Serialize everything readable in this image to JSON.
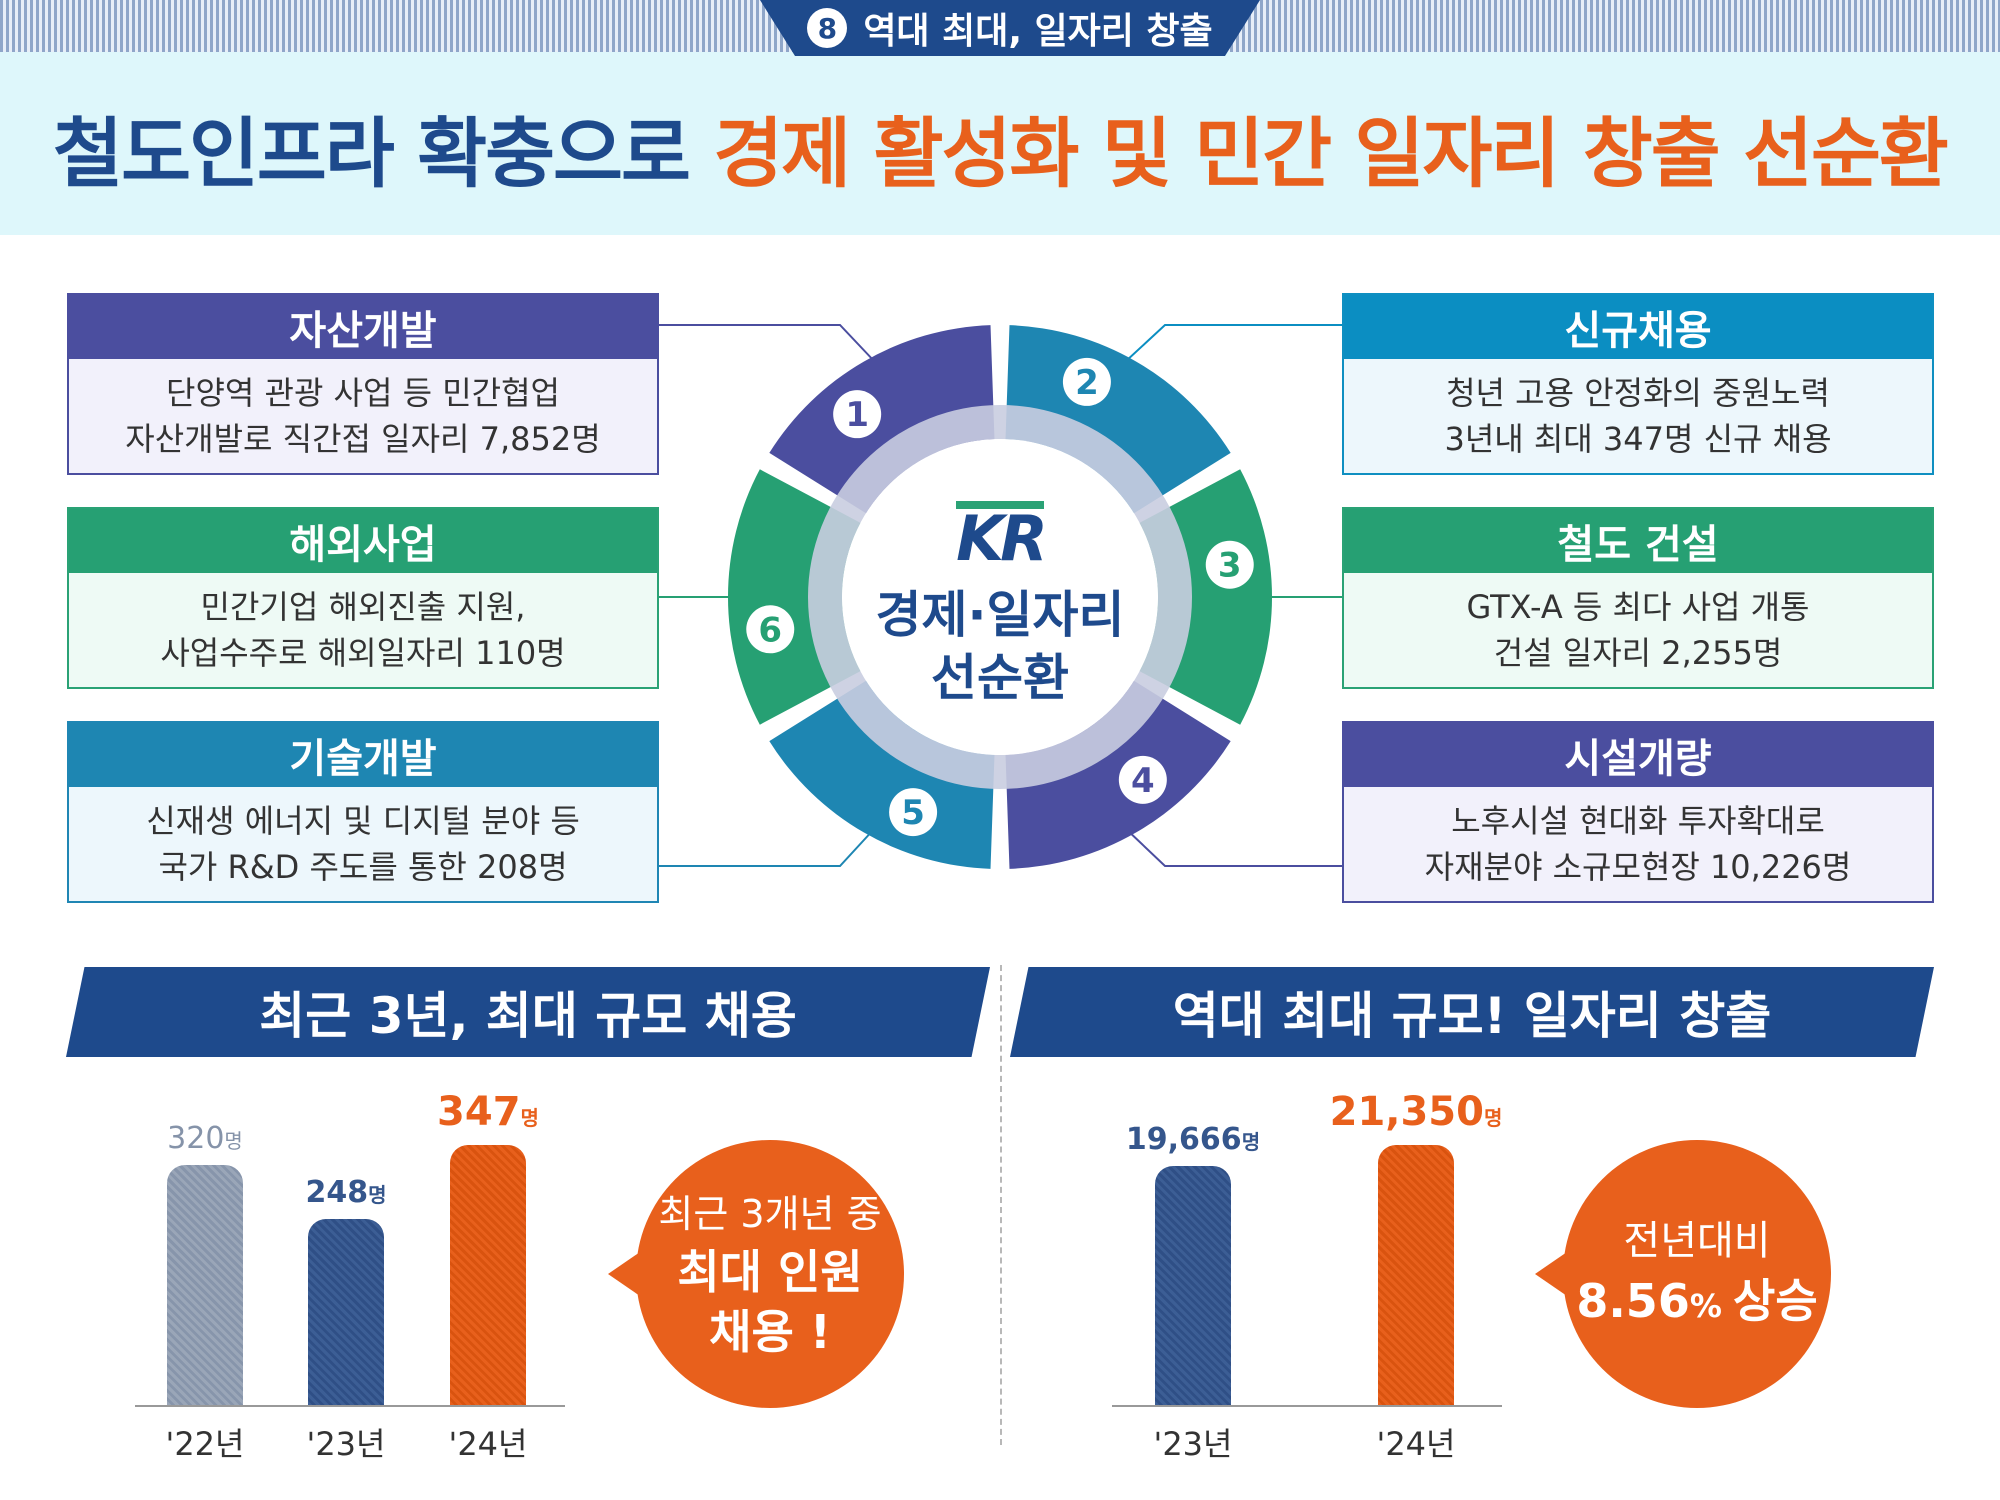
{
  "header": {
    "tab_number": "8",
    "tab_label": "역대 최대, 일자리 창출",
    "title_part1": "철도인프라 확충으로 ",
    "title_part2": "경제 활성화 및 민간 일자리 창출 선순환"
  },
  "center": {
    "logo_text": "KR",
    "line1": "경제·일자리",
    "line2": "선순환"
  },
  "segments": [
    "1",
    "2",
    "3",
    "4",
    "5",
    "6"
  ],
  "cards": {
    "asset": {
      "title": "자산개발",
      "line1": "단양역 관광 사업 등 민간협업",
      "line2": "자산개발로 직간접 일자리 7,852명"
    },
    "overseas": {
      "title": "해외사업",
      "line1": "민간기업 해외진출 지원,",
      "line2": "사업수주로 해외일자리 110명"
    },
    "tech": {
      "title": "기술개발",
      "line1": "신재생 에너지 및 디지털 분야 등",
      "line2": "국가 R&D 주도를 통한 208명"
    },
    "hiring": {
      "title": "신규채용",
      "line1": "청년 고용 안정화의 중원노력",
      "line2": "3년내 최대 347명 신규 채용"
    },
    "construction": {
      "title": "철도 건설",
      "line1": "GTX-A 등 최다 사업 개통",
      "line2": "건설 일자리 2,255명"
    },
    "facility": {
      "title": "시설개량",
      "line1": "노후시설 현대화 투자확대로",
      "line2": "자재분야 소규모현장 10,226명"
    }
  },
  "left_section": {
    "title": "최근 3년, 최대 규모 채용",
    "unit": "명",
    "bubble": {
      "line1": "최근 3개년 중",
      "line2": "최대 인원",
      "line3": "채용 !"
    }
  },
  "right_section": {
    "title": "역대 최대 규모! 일자리 창출",
    "unit": "명",
    "bubble": {
      "line1": "전년대비",
      "line2a": "8.56",
      "line2b": "% ",
      "line2c": "상승"
    }
  },
  "chart_data": [
    {
      "type": "bar",
      "title": "최근 3년, 최대 규모 채용",
      "categories": [
        "'22년",
        "'23년",
        "'24년"
      ],
      "values": [
        320,
        248,
        347
      ],
      "labels": [
        "320",
        "248",
        "347"
      ],
      "unit": "명",
      "colors": [
        "#8e9bb0",
        "#35568c",
        "#e8601c"
      ],
      "ylim": [
        0,
        347
      ]
    },
    {
      "type": "bar",
      "title": "역대 최대 규모! 일자리 창출",
      "categories": [
        "'23년",
        "'24년"
      ],
      "values": [
        19666,
        21350
      ],
      "labels": [
        "19,666",
        "21,350"
      ],
      "unit": "명",
      "colors": [
        "#35568c",
        "#e8601c"
      ],
      "ylim": [
        0,
        21350
      ]
    }
  ]
}
